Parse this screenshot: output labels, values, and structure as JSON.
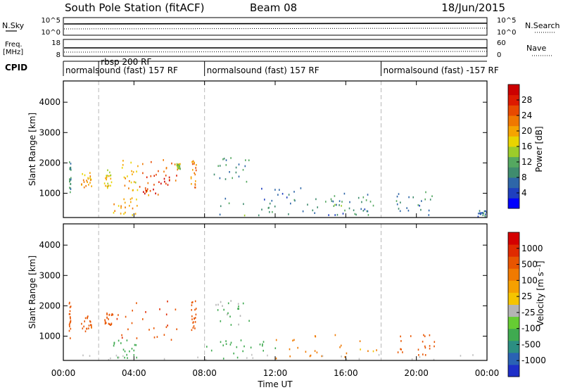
{
  "header": {
    "station": "South Pole Station (fitACF)",
    "beam": "Beam 08",
    "date": "18/Jun/2015"
  },
  "strips": {
    "nsky": {
      "label": "N.Sky",
      "top_tick": "10^5",
      "bottom_tick": "10^0"
    },
    "nsearch": {
      "label": "N.Search",
      "top_tick": "10^5",
      "bottom_tick": "10^0"
    },
    "freq": {
      "label_line1": "Freq.",
      "label_line2": "[MHz]",
      "top_tick": "18",
      "bottom_tick": "8"
    },
    "nave": {
      "label": "Nave",
      "top_tick": "60",
      "bottom_tick": "0"
    },
    "cpid": {
      "label": "CPID"
    }
  },
  "cpid_segments": [
    {
      "label": "normalsound (fast) 157 RF",
      "start": 0.0,
      "end": 8.0
    },
    {
      "label": "rbsp 200 RF",
      "start": 2.0,
      "end": 8.0
    },
    {
      "label": "normalsound (fast) 157 RF",
      "start": 8.0,
      "end": 18.0
    },
    {
      "label": "normalsound (fast) -157 RF",
      "start": 18.0,
      "end": 24.0
    }
  ],
  "colors": {
    "power_scale": [
      "#0000ff",
      "#1f3fbf",
      "#2e66a8",
      "#3f8c6e",
      "#55a860",
      "#9ccc2a",
      "#e8d400",
      "#f5a400",
      "#f07800",
      "#e84a00",
      "#dd1a00",
      "#cc0000"
    ],
    "velocity_scale": [
      "#1e2fc8",
      "#2a62b4",
      "#2c8e82",
      "#3faa50",
      "#66cc33",
      "#b4b4b4",
      "#f5c400",
      "#f5a000",
      "#f07a00",
      "#e85500",
      "#e02a00",
      "#d40000"
    ],
    "ground_scatter": "#c0c0c0"
  },
  "chart_data": [
    {
      "type": "heatmap",
      "name": "Power",
      "xlabel": "Time UT",
      "ylabel": "Slant Range [km]",
      "x_range": [
        0,
        24
      ],
      "ylim": [
        200,
        4700
      ],
      "x_ticks": [
        "00:00",
        "04:00",
        "08:00",
        "12:00",
        "16:00",
        "20:00",
        "00:00"
      ],
      "y_ticks": [
        1000,
        2000,
        3000,
        4000
      ],
      "colorbar": {
        "label": "Power [dB]",
        "range": [
          0,
          32
        ],
        "tick_labels": [
          "4",
          "8",
          "12",
          "16",
          "20",
          "24",
          "28"
        ]
      },
      "regions": [
        {
          "t0": 0.3,
          "t1": 0.4,
          "r0": 950,
          "r1": 2200,
          "v": 10
        },
        {
          "t0": 1.0,
          "t1": 1.6,
          "r0": 1150,
          "r1": 1700,
          "v": 20
        },
        {
          "t0": 2.3,
          "t1": 2.8,
          "r0": 1200,
          "r1": 1800,
          "v": 17
        },
        {
          "t0": 3.0,
          "t1": 4.2,
          "r0": 1100,
          "r1": 2150,
          "v": 19
        },
        {
          "t0": 4.2,
          "t1": 6.5,
          "r0": 900,
          "r1": 2250,
          "v": 24
        },
        {
          "t0": 4.5,
          "t1": 6.0,
          "r0": 1000,
          "r1": 1700,
          "v": 28
        },
        {
          "t0": 2.8,
          "t1": 4.2,
          "r0": 300,
          "r1": 950,
          "v": 20
        },
        {
          "t0": 6.4,
          "t1": 6.6,
          "r0": 1800,
          "r1": 2000,
          "v": 15
        },
        {
          "t0": 7.2,
          "t1": 7.5,
          "r0": 1200,
          "r1": 2200,
          "v": 22
        },
        {
          "t0": 8.5,
          "t1": 10.5,
          "r0": 1400,
          "r1": 2200,
          "v": 9
        },
        {
          "t0": 8.0,
          "t1": 18.0,
          "r0": 280,
          "r1": 900,
          "v": 10
        },
        {
          "t0": 11.0,
          "t1": 14.5,
          "r0": 300,
          "r1": 1300,
          "v": 9
        },
        {
          "t0": 15.0,
          "t1": 18.0,
          "r0": 300,
          "r1": 1100,
          "v": 8
        },
        {
          "t0": 18.8,
          "t1": 21.0,
          "r0": 300,
          "r1": 1100,
          "v": 9
        },
        {
          "t0": 23.4,
          "t1": 24.0,
          "r0": 250,
          "r1": 450,
          "v": 7
        }
      ]
    },
    {
      "type": "heatmap",
      "name": "Velocity",
      "xlabel": "Time UT",
      "ylabel": "Slant Range [km]",
      "x_range": [
        0,
        24
      ],
      "ylim": [
        200,
        4700
      ],
      "x_ticks": [
        "00:00",
        "04:00",
        "08:00",
        "12:00",
        "16:00",
        "20:00",
        "00:00"
      ],
      "y_ticks": [
        1000,
        2000,
        3000,
        4000
      ],
      "colorbar": {
        "label": "Velocity [m s⁻¹]",
        "tick_labels": [
          "1000",
          "500",
          "100",
          "25",
          "-25",
          "-100",
          "-500",
          "-1000"
        ]
      },
      "regions": [
        {
          "t0": 0.3,
          "t1": 0.4,
          "r0": 950,
          "r1": 2200,
          "v": -300
        },
        {
          "t0": 1.0,
          "t1": 1.6,
          "r0": 1150,
          "r1": 1700,
          "v": -200
        },
        {
          "t0": 2.3,
          "t1": 2.8,
          "r0": 1200,
          "r1": 1800,
          "v": -300
        },
        {
          "t0": 3.0,
          "t1": 6.5,
          "r0": 900,
          "r1": 2250,
          "v": -400
        },
        {
          "t0": 2.8,
          "t1": 4.2,
          "r0": 300,
          "r1": 950,
          "v": 300
        },
        {
          "t0": 7.2,
          "t1": 7.5,
          "r0": 1200,
          "r1": 2200,
          "v": -300
        },
        {
          "t0": 8.5,
          "t1": 10.5,
          "r0": 1400,
          "r1": 2200,
          "v": 100
        },
        {
          "t0": 8.0,
          "t1": 12.0,
          "r0": 280,
          "r1": 900,
          "v": 250
        },
        {
          "t0": 12.0,
          "t1": 18.0,
          "r0": 280,
          "r1": 1100,
          "v": -60
        },
        {
          "t0": 18.8,
          "t1": 21.0,
          "r0": 400,
          "r1": 1100,
          "v": -300
        },
        {
          "t0": 0.0,
          "t1": 24.0,
          "r0": 250,
          "r1": 420,
          "v": 0
        }
      ]
    }
  ]
}
